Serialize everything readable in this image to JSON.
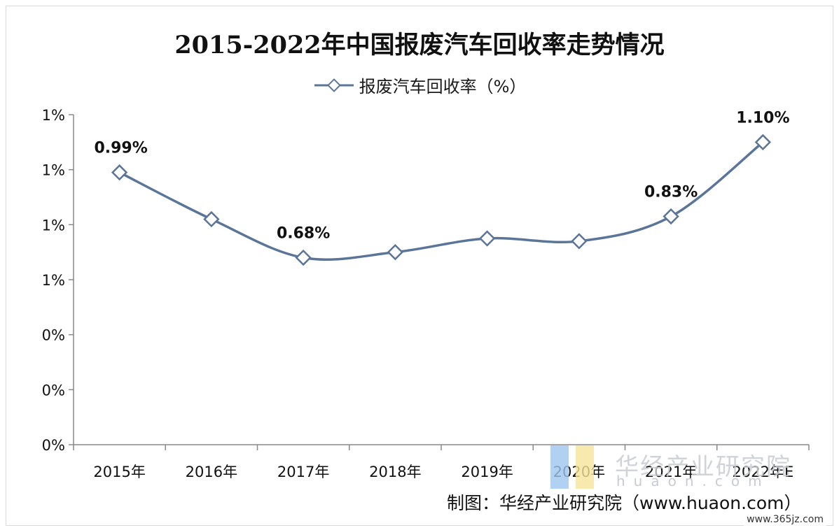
{
  "chart_data": {
    "type": "line",
    "title": "2015-2022年中国报废汽车回收率走势情况",
    "categories": [
      "2015年",
      "2016年",
      "2017年",
      "2018年",
      "2019年",
      "2020年",
      "2021年",
      "2022年E"
    ],
    "series": [
      {
        "name": "报废汽车回收率（%）",
        "values": [
          0.99,
          0.82,
          0.68,
          0.7,
          0.75,
          0.74,
          0.83,
          1.1
        ],
        "data_labels": [
          "0.99%",
          null,
          "0.68%",
          null,
          null,
          null,
          "0.83%",
          "1.10%"
        ]
      }
    ],
    "ylim": [
      0,
      1.2
    ],
    "yticks": [
      0,
      0.2,
      0.4,
      0.6,
      0.8,
      1.0,
      1.2
    ],
    "ytick_labels": [
      "0%",
      "0%",
      "0%",
      "1%",
      "1%",
      "1%",
      "1%"
    ],
    "grid": false,
    "legend": "top-center",
    "colors": {
      "line": "#5b7599",
      "marker_fill": "#ffffff",
      "marker_edge": "#5b7599"
    }
  },
  "watermark": {
    "text": "华经产业研究院",
    "sub": "huaon.com"
  },
  "source": "制图：华经产业研究院（www.huaon.com）",
  "site_tag": "www.365jz.com"
}
